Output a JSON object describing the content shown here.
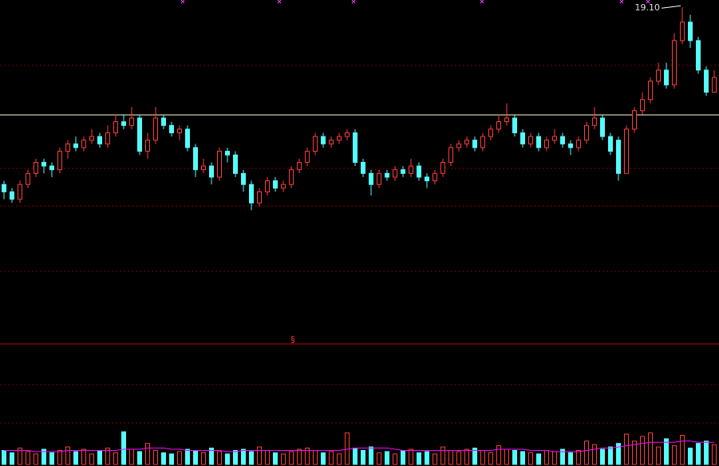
{
  "chart_data": {
    "type": "candlestick",
    "ylim": [
      10,
      19.3
    ],
    "up_color": "#ff3c3c",
    "down_color": "#54fcfc",
    "ma_color": "#ff00ff",
    "high_label": {
      "value": 19.1,
      "label": "19.10"
    },
    "panel_marker": "§",
    "candles": [
      [
        14.3,
        14.4,
        13.9,
        14.1
      ],
      [
        14.1,
        14.2,
        13.8,
        13.9
      ],
      [
        13.9,
        14.4,
        13.8,
        14.3
      ],
      [
        14.3,
        14.7,
        14.2,
        14.6
      ],
      [
        14.6,
        15.0,
        14.5,
        14.9
      ],
      [
        14.9,
        15.0,
        14.6,
        14.8
      ],
      [
        14.8,
        14.9,
        14.5,
        14.7
      ],
      [
        14.7,
        15.3,
        14.6,
        15.2
      ],
      [
        15.2,
        15.5,
        15.0,
        15.4
      ],
      [
        15.4,
        15.6,
        15.2,
        15.3
      ],
      [
        15.3,
        15.6,
        15.2,
        15.5
      ],
      [
        15.5,
        15.8,
        15.4,
        15.6
      ],
      [
        15.6,
        15.7,
        15.3,
        15.4
      ],
      [
        15.4,
        15.9,
        15.3,
        15.7
      ],
      [
        15.7,
        16.2,
        15.6,
        16.0
      ],
      [
        16.0,
        16.2,
        15.8,
        15.9
      ],
      [
        15.9,
        16.4,
        15.8,
        16.1
      ],
      [
        16.1,
        16.2,
        15.1,
        15.2
      ],
      [
        15.2,
        15.7,
        15.0,
        15.5
      ],
      [
        15.5,
        16.4,
        15.4,
        16.1
      ],
      [
        16.1,
        16.2,
        15.8,
        15.9
      ],
      [
        15.9,
        16.0,
        15.6,
        15.7
      ],
      [
        15.7,
        15.9,
        15.5,
        15.8
      ],
      [
        15.8,
        15.9,
        15.2,
        15.3
      ],
      [
        15.3,
        15.4,
        14.5,
        14.7
      ],
      [
        14.7,
        15.0,
        14.6,
        14.8
      ],
      [
        14.8,
        14.9,
        14.3,
        14.5
      ],
      [
        14.5,
        15.3,
        14.4,
        15.2
      ],
      [
        15.2,
        15.3,
        14.9,
        15.1
      ],
      [
        15.1,
        15.2,
        14.5,
        14.6
      ],
      [
        14.6,
        14.7,
        14.1,
        14.3
      ],
      [
        14.3,
        14.4,
        13.6,
        13.8
      ],
      [
        13.8,
        14.2,
        13.7,
        14.1
      ],
      [
        14.1,
        14.5,
        14.0,
        14.4
      ],
      [
        14.4,
        14.5,
        14.1,
        14.2
      ],
      [
        14.2,
        14.4,
        14.1,
        14.3
      ],
      [
        14.3,
        14.8,
        14.2,
        14.7
      ],
      [
        14.7,
        15.0,
        14.6,
        14.9
      ],
      [
        14.9,
        15.3,
        14.8,
        15.2
      ],
      [
        15.2,
        15.7,
        15.1,
        15.6
      ],
      [
        15.6,
        15.7,
        15.3,
        15.4
      ],
      [
        15.4,
        15.6,
        15.3,
        15.5
      ],
      [
        15.5,
        15.7,
        15.4,
        15.6
      ],
      [
        15.6,
        15.8,
        15.5,
        15.7
      ],
      [
        15.7,
        15.8,
        14.8,
        14.9
      ],
      [
        14.9,
        15.0,
        14.5,
        14.6
      ],
      [
        14.6,
        14.7,
        14.0,
        14.3
      ],
      [
        14.3,
        14.7,
        14.2,
        14.6
      ],
      [
        14.6,
        14.7,
        14.4,
        14.5
      ],
      [
        14.5,
        14.8,
        14.4,
        14.7
      ],
      [
        14.7,
        14.8,
        14.5,
        14.6
      ],
      [
        14.6,
        15.0,
        14.5,
        14.8
      ],
      [
        14.8,
        14.9,
        14.4,
        14.5
      ],
      [
        14.5,
        14.6,
        14.2,
        14.4
      ],
      [
        14.4,
        14.7,
        14.3,
        14.6
      ],
      [
        14.6,
        15.0,
        14.5,
        14.9
      ],
      [
        14.9,
        15.4,
        14.8,
        15.3
      ],
      [
        15.3,
        15.5,
        15.2,
        15.4
      ],
      [
        15.4,
        15.6,
        15.3,
        15.5
      ],
      [
        15.5,
        15.6,
        15.2,
        15.3
      ],
      [
        15.3,
        15.7,
        15.2,
        15.6
      ],
      [
        15.6,
        15.9,
        15.5,
        15.8
      ],
      [
        15.8,
        16.2,
        15.7,
        16.0
      ],
      [
        16.0,
        16.5,
        15.9,
        16.1
      ],
      [
        16.1,
        16.2,
        15.6,
        15.7
      ],
      [
        15.7,
        15.8,
        15.3,
        15.4
      ],
      [
        15.4,
        15.7,
        15.3,
        15.6
      ],
      [
        15.6,
        15.7,
        15.2,
        15.3
      ],
      [
        15.3,
        15.6,
        15.2,
        15.5
      ],
      [
        15.5,
        15.8,
        15.4,
        15.6
      ],
      [
        15.6,
        15.7,
        15.3,
        15.4
      ],
      [
        15.4,
        15.5,
        15.1,
        15.3
      ],
      [
        15.3,
        15.6,
        15.2,
        15.5
      ],
      [
        15.5,
        16.0,
        15.4,
        15.9
      ],
      [
        15.9,
        16.4,
        15.8,
        16.1
      ],
      [
        16.1,
        16.2,
        15.5,
        15.6
      ],
      [
        15.6,
        15.7,
        15.1,
        15.2
      ],
      [
        15.5,
        15.6,
        14.4,
        14.6
      ],
      [
        14.6,
        15.9,
        14.6,
        15.8
      ],
      [
        15.8,
        16.4,
        15.7,
        16.3
      ],
      [
        16.3,
        16.8,
        16.2,
        16.6
      ],
      [
        16.6,
        17.2,
        16.5,
        17.1
      ],
      [
        17.1,
        17.6,
        17.0,
        17.4
      ],
      [
        17.4,
        17.6,
        16.9,
        17.0
      ],
      [
        17.0,
        18.4,
        16.9,
        18.2
      ],
      [
        18.2,
        19.1,
        18.1,
        18.7
      ],
      [
        18.7,
        18.9,
        18.0,
        18.2
      ],
      [
        18.2,
        18.3,
        17.3,
        17.4
      ],
      [
        17.4,
        17.5,
        16.7,
        16.8
      ],
      [
        16.8,
        17.4,
        16.8,
        17.2
      ]
    ],
    "volume_ylim": [
      0,
      100
    ],
    "volume": [
      12,
      10,
      14,
      11,
      9,
      13,
      10,
      12,
      15,
      11,
      13,
      9,
      12,
      14,
      10,
      28,
      13,
      11,
      18,
      12,
      10,
      9,
      11,
      13,
      12,
      10,
      14,
      11,
      9,
      12,
      13,
      11,
      15,
      12,
      10,
      9,
      11,
      13,
      14,
      12,
      10,
      11,
      9,
      27,
      14,
      12,
      15,
      10,
      11,
      9,
      12,
      13,
      10,
      11,
      9,
      15,
      12,
      11,
      13,
      14,
      12,
      10,
      16,
      13,
      12,
      11,
      10,
      9,
      12,
      11,
      13,
      10,
      12,
      20,
      17,
      13,
      15,
      18,
      26,
      20,
      24,
      27,
      15,
      22,
      16,
      25,
      14,
      18,
      20,
      17
    ],
    "volume_ma": [
      12,
      12,
      12,
      12,
      11,
      11,
      11,
      11,
      12,
      12,
      12,
      12,
      12,
      12,
      12,
      13,
      13,
      13,
      14,
      14,
      14,
      13,
      13,
      12,
      12,
      12,
      12,
      12,
      11,
      11,
      12,
      12,
      12,
      12,
      12,
      12,
      12,
      12,
      12,
      12,
      12,
      12,
      12,
      13,
      14,
      14,
      14,
      14,
      14,
      13,
      12,
      12,
      12,
      12,
      12,
      12,
      12,
      12,
      12,
      12,
      12,
      12,
      13,
      13,
      13,
      13,
      12,
      12,
      12,
      11,
      11,
      11,
      11,
      12,
      13,
      14,
      14,
      15,
      16,
      17,
      18,
      19,
      19,
      19,
      19,
      20,
      20,
      19,
      19,
      19
    ]
  }
}
